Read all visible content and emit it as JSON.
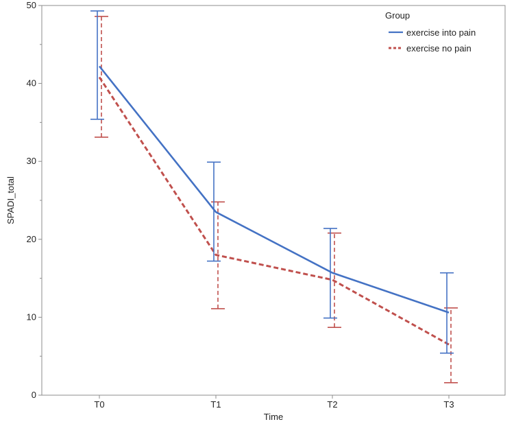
{
  "chart_data": {
    "type": "line",
    "title": "",
    "xlabel": "Time",
    "ylabel": "SPADI_total",
    "categories": [
      "T0",
      "T1",
      "T2",
      "T3"
    ],
    "ylim": [
      0,
      50
    ],
    "yticks": [
      0,
      10,
      20,
      30,
      40,
      50
    ],
    "grid": false,
    "legend": {
      "title": "Group",
      "position": "top-right"
    },
    "series": [
      {
        "name": "exercise into pain",
        "color": "#4472c4",
        "line_style": "solid",
        "values": [
          42.2,
          23.5,
          15.7,
          10.6
        ],
        "error_low": [
          35.4,
          17.2,
          9.9,
          5.4
        ],
        "error_high": [
          49.3,
          29.9,
          21.4,
          15.7
        ]
      },
      {
        "name": "exercise no pain",
        "color": "#c0504d",
        "line_style": "dashed",
        "values": [
          40.8,
          18.0,
          14.8,
          6.5
        ],
        "error_low": [
          33.1,
          11.1,
          8.7,
          1.6
        ],
        "error_high": [
          48.6,
          24.8,
          20.8,
          11.2
        ]
      }
    ]
  }
}
